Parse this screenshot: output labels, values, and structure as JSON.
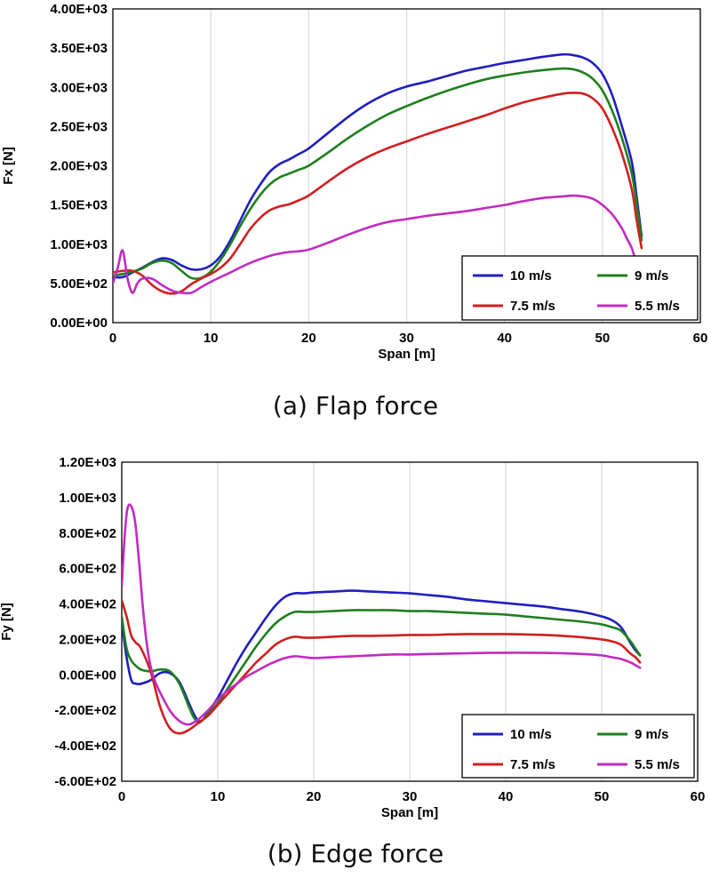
{
  "chart_data": [
    {
      "type": "line",
      "caption": "(a) Flap  force",
      "xlabel": "Span [m]",
      "ylabel": "Fx [N]",
      "xlim": [
        0,
        60
      ],
      "ylim": [
        0,
        4000
      ],
      "x_ticks": [
        0,
        10,
        20,
        30,
        40,
        50,
        60
      ],
      "x_tick_labels": [
        "0",
        "10",
        "20",
        "30",
        "40",
        "50",
        "60"
      ],
      "y_ticks": [
        0,
        500,
        1000,
        1500,
        2000,
        2500,
        3000,
        3500,
        4000
      ],
      "y_tick_labels": [
        "0.00E+00",
        "5.00E+02",
        "1.00E+03",
        "1.50E+03",
        "2.00E+03",
        "2.50E+03",
        "3.00E+03",
        "3.50E+03",
        "4.00E+03"
      ],
      "grid": "vertical",
      "legend": "bottom-right",
      "series": [
        {
          "name": "10 m/s",
          "color": "#1f1fbf",
          "x": [
            0,
            1,
            2,
            3,
            4,
            5,
            6,
            7,
            8,
            9,
            10,
            11,
            12,
            13,
            14,
            15,
            16,
            17,
            18,
            19,
            20,
            22,
            24,
            26,
            28,
            30,
            32,
            34,
            36,
            38,
            40,
            42,
            44,
            46,
            47,
            48,
            49,
            50,
            51,
            52,
            53,
            53.5,
            54
          ],
          "y": [
            580,
            580,
            640,
            700,
            770,
            820,
            800,
            730,
            680,
            680,
            730,
            850,
            1050,
            1300,
            1550,
            1750,
            1920,
            2020,
            2080,
            2150,
            2220,
            2420,
            2620,
            2790,
            2920,
            3010,
            3070,
            3140,
            3210,
            3260,
            3310,
            3350,
            3390,
            3420,
            3410,
            3380,
            3310,
            3170,
            2900,
            2500,
            2050,
            1600,
            1100
          ]
        },
        {
          "name": "9 m/s",
          "color": "#1e7f1e",
          "x": [
            0,
            1,
            2,
            3,
            4,
            5,
            6,
            7,
            8,
            9,
            10,
            11,
            12,
            13,
            14,
            15,
            16,
            17,
            18,
            19,
            20,
            22,
            24,
            26,
            28,
            30,
            32,
            34,
            36,
            38,
            40,
            42,
            44,
            46,
            47,
            48,
            49,
            50,
            51,
            52,
            53,
            53.5,
            54
          ],
          "y": [
            600,
            620,
            650,
            690,
            760,
            790,
            760,
            660,
            570,
            570,
            650,
            800,
            1000,
            1230,
            1440,
            1620,
            1760,
            1850,
            1900,
            1950,
            2000,
            2170,
            2350,
            2510,
            2650,
            2760,
            2860,
            2950,
            3030,
            3100,
            3150,
            3190,
            3220,
            3240,
            3230,
            3190,
            3110,
            2960,
            2700,
            2350,
            1900,
            1500,
            1050
          ]
        },
        {
          "name": "7.5 m/s",
          "color": "#d01f1f",
          "x": [
            0,
            1,
            2,
            3,
            4,
            5,
            6,
            7,
            8,
            9,
            10,
            11,
            12,
            13,
            14,
            15,
            16,
            17,
            18,
            19,
            20,
            22,
            24,
            26,
            28,
            30,
            32,
            34,
            36,
            38,
            40,
            42,
            44,
            46,
            47,
            48,
            49,
            50,
            51,
            52,
            53,
            53.5,
            54
          ],
          "y": [
            640,
            660,
            660,
            600,
            480,
            400,
            370,
            400,
            490,
            560,
            620,
            700,
            820,
            1000,
            1190,
            1330,
            1430,
            1480,
            1510,
            1560,
            1620,
            1800,
            1970,
            2110,
            2220,
            2310,
            2400,
            2480,
            2560,
            2640,
            2730,
            2810,
            2870,
            2920,
            2930,
            2920,
            2860,
            2730,
            2480,
            2150,
            1700,
            1300,
            950
          ]
        },
        {
          "name": "5.5 m/s",
          "color": "#c02cc0",
          "x": [
            0,
            0.5,
            1,
            1.5,
            2,
            2.5,
            3,
            4,
            5,
            6,
            7,
            8,
            9,
            10,
            12,
            14,
            16,
            17,
            18,
            19,
            20,
            22,
            24,
            26,
            28,
            30,
            32,
            34,
            36,
            38,
            40,
            42,
            44,
            46,
            47,
            48,
            49,
            50,
            51,
            52,
            52.5,
            53,
            53.4
          ],
          "y": [
            500,
            700,
            920,
            560,
            380,
            500,
            560,
            560,
            480,
            410,
            380,
            380,
            450,
            520,
            640,
            760,
            850,
            880,
            900,
            910,
            930,
            1020,
            1120,
            1210,
            1280,
            1320,
            1360,
            1390,
            1420,
            1460,
            1500,
            1550,
            1590,
            1610,
            1620,
            1610,
            1580,
            1500,
            1380,
            1200,
            1070,
            950,
            780
          ]
        }
      ]
    },
    {
      "type": "line",
      "caption": "(b) Edge  force",
      "xlabel": "Span [m]",
      "ylabel": "Fy [N]",
      "xlim": [
        0,
        60
      ],
      "ylim": [
        -600,
        1200
      ],
      "x_ticks": [
        0,
        10,
        20,
        30,
        40,
        50,
        60
      ],
      "x_tick_labels": [
        "0",
        "10",
        "20",
        "30",
        "40",
        "50",
        "60"
      ],
      "y_ticks": [
        -600,
        -400,
        -200,
        0,
        200,
        400,
        600,
        800,
        1000,
        1200
      ],
      "y_tick_labels": [
        "-6.00E+02",
        "-4.00E+02",
        "-2.00E+02",
        "0.00E+00",
        "2.00E+02",
        "4.00E+02",
        "6.00E+02",
        "8.00E+02",
        "1.00E+03",
        "1.20E+03"
      ],
      "grid": "vertical",
      "legend": "bottom-right",
      "series": [
        {
          "name": "10 m/s",
          "color": "#1f1fbf",
          "x": [
            0,
            0.5,
            1,
            1.5,
            2,
            3,
            4,
            5,
            6,
            7,
            7.5,
            8,
            8.5,
            9,
            10,
            11,
            12,
            13,
            14,
            15,
            16,
            17,
            18,
            19,
            20,
            22,
            24,
            26,
            28,
            30,
            32,
            34,
            36,
            38,
            40,
            42,
            44,
            46,
            48,
            50,
            51,
            52,
            53,
            53.5,
            54
          ],
          "y": [
            300,
            100,
            -30,
            -50,
            -50,
            -30,
            10,
            10,
            -40,
            -160,
            -220,
            -260,
            -250,
            -210,
            -130,
            -30,
            70,
            160,
            240,
            320,
            390,
            440,
            460,
            460,
            465,
            470,
            475,
            470,
            465,
            460,
            450,
            440,
            425,
            415,
            405,
            395,
            385,
            370,
            355,
            330,
            310,
            270,
            180,
            140,
            110
          ]
        },
        {
          "name": "9 m/s",
          "color": "#1e7f1e",
          "x": [
            0,
            0.5,
            1,
            1.5,
            2,
            3,
            4,
            5,
            6,
            7,
            7.5,
            8,
            8.5,
            9,
            10,
            11,
            12,
            13,
            14,
            15,
            16,
            17,
            18,
            19,
            20,
            22,
            24,
            26,
            28,
            30,
            32,
            34,
            36,
            38,
            40,
            42,
            44,
            46,
            48,
            50,
            51,
            52,
            53,
            53.5,
            54
          ],
          "y": [
            330,
            150,
            80,
            50,
            30,
            20,
            30,
            20,
            -50,
            -180,
            -240,
            -270,
            -250,
            -220,
            -160,
            -80,
            0,
            80,
            160,
            230,
            290,
            330,
            355,
            355,
            355,
            360,
            365,
            365,
            365,
            360,
            360,
            355,
            350,
            345,
            340,
            330,
            320,
            310,
            300,
            285,
            270,
            250,
            190,
            150,
            110
          ]
        },
        {
          "name": "7.5 m/s",
          "color": "#d01f1f",
          "x": [
            0,
            0.5,
            1,
            1.5,
            2,
            3,
            4,
            5,
            6,
            7,
            8,
            9,
            10,
            11,
            12,
            13,
            14,
            15,
            16,
            17,
            18,
            19,
            20,
            22,
            24,
            26,
            28,
            30,
            32,
            34,
            36,
            38,
            40,
            42,
            44,
            46,
            48,
            50,
            51,
            52,
            53,
            53.5,
            54
          ],
          "y": [
            420,
            330,
            220,
            180,
            150,
            20,
            -180,
            -300,
            -330,
            -310,
            -270,
            -230,
            -170,
            -110,
            -50,
            10,
            70,
            120,
            170,
            200,
            215,
            210,
            210,
            215,
            220,
            220,
            222,
            225,
            225,
            228,
            230,
            230,
            230,
            228,
            225,
            220,
            212,
            200,
            190,
            170,
            120,
            100,
            70
          ]
        },
        {
          "name": "5.5 m/s",
          "color": "#c02cc0",
          "x": [
            0,
            0.3,
            0.6,
            1,
            1.4,
            1.8,
            2.2,
            2.6,
            3,
            3.5,
            4,
            5,
            6,
            7,
            8,
            9,
            10,
            11,
            12,
            13,
            14,
            15,
            16,
            17,
            18,
            19,
            20,
            22,
            24,
            26,
            28,
            30,
            32,
            34,
            36,
            38,
            40,
            42,
            44,
            46,
            48,
            50,
            51,
            52,
            53,
            53.5,
            54
          ],
          "y": [
            500,
            780,
            940,
            950,
            860,
            640,
            380,
            180,
            50,
            -40,
            -100,
            -200,
            -260,
            -280,
            -250,
            -200,
            -140,
            -90,
            -50,
            -10,
            20,
            50,
            75,
            95,
            105,
            100,
            95,
            100,
            105,
            110,
            115,
            115,
            118,
            120,
            122,
            124,
            125,
            125,
            124,
            122,
            118,
            110,
            100,
            90,
            70,
            55,
            40
          ]
        }
      ]
    }
  ]
}
